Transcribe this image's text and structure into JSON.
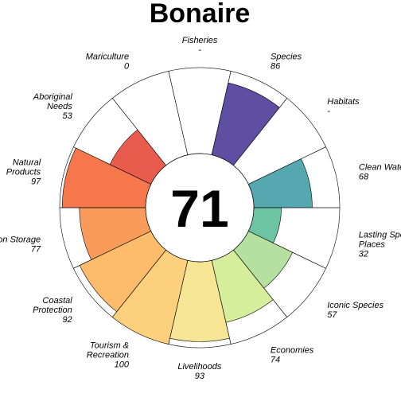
{
  "chart_data": {
    "type": "flower",
    "title": "Bonaire",
    "center_score": "71",
    "max_score": 100,
    "segments": [
      {
        "name": "Carbon Storage",
        "score_label": "77",
        "value": 77,
        "color": "#F99C5B"
      },
      {
        "name": "Natural Products",
        "score_label": "97",
        "value": 97,
        "color": "#F5774B"
      },
      {
        "name": "Aboriginal Needs",
        "score_label": "53",
        "value": 53,
        "color": "#E95B4D"
      },
      {
        "name": "Mariculture",
        "score_label": "0",
        "value": 0,
        "color": "#D9434F"
      },
      {
        "name": "Fisheries",
        "score_label": "-",
        "value": null,
        "color": "#9E0142"
      },
      {
        "name": "Species",
        "score_label": "86",
        "value": 86,
        "color": "#5E4FA2"
      },
      {
        "name": "Habitats",
        "score_label": "-",
        "value": null,
        "color": "#4A7DB7"
      },
      {
        "name": "Clean Waters",
        "score_label": "68",
        "value": 68,
        "color": "#56A8B0"
      },
      {
        "name": "Lasting Special Places",
        "score_label": "32",
        "value": 32,
        "color": "#6CC4A4"
      },
      {
        "name": "Iconic Species",
        "score_label": "57",
        "value": 57,
        "color": "#B5E0A0"
      },
      {
        "name": "Economies",
        "score_label": "74",
        "value": 74,
        "color": "#D6EE9B"
      },
      {
        "name": "Livelihoods",
        "score_label": "93",
        "value": 93,
        "color": "#F6E595"
      },
      {
        "name": "Tourism & Recreation",
        "score_label": "100",
        "value": 100,
        "color": "#FDD07E"
      },
      {
        "name": "Coastal Protection",
        "score_label": "92",
        "value": 92,
        "color": "#FDBB6C"
      }
    ]
  }
}
